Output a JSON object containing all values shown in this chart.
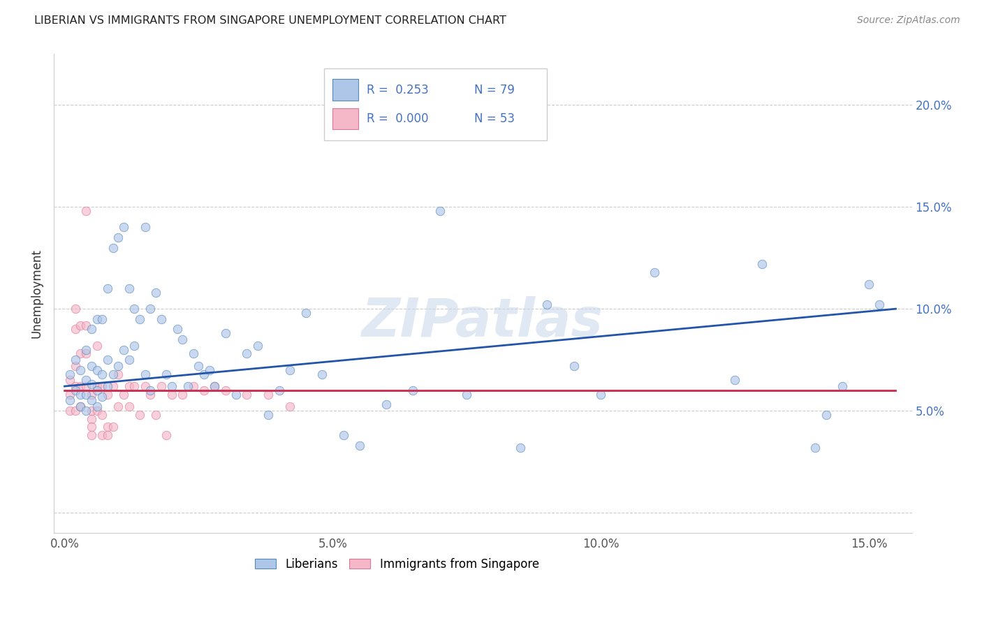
{
  "title": "LIBERIAN VS IMMIGRANTS FROM SINGAPORE UNEMPLOYMENT CORRELATION CHART",
  "source": "Source: ZipAtlas.com",
  "ylabel": "Unemployment",
  "xlim": [
    -0.002,
    0.158
  ],
  "ylim": [
    -0.01,
    0.225
  ],
  "ytick_positions": [
    0.0,
    0.05,
    0.1,
    0.15,
    0.2
  ],
  "ytick_labels": [
    "",
    "5.0%",
    "10.0%",
    "15.0%",
    "20.0%"
  ],
  "xtick_positions": [
    0.0,
    0.05,
    0.1,
    0.15
  ],
  "xtick_labels": [
    "0.0%",
    "5.0%",
    "10.0%",
    "15.0%"
  ],
  "legend_R_blue": "0.253",
  "legend_N_blue": "79",
  "legend_R_pink": "0.000",
  "legend_N_pink": "53",
  "blue_color": "#aec6e8",
  "pink_color": "#f4b8c8",
  "blue_edge": "#5588bb",
  "pink_edge": "#dd7799",
  "trend_blue": "#2255aa",
  "trend_pink": "#cc3355",
  "watermark": "ZIPatlas",
  "blue_x": [
    0.001,
    0.001,
    0.002,
    0.002,
    0.003,
    0.003,
    0.003,
    0.004,
    0.004,
    0.004,
    0.004,
    0.005,
    0.005,
    0.005,
    0.005,
    0.006,
    0.006,
    0.006,
    0.006,
    0.007,
    0.007,
    0.007,
    0.008,
    0.008,
    0.008,
    0.009,
    0.009,
    0.01,
    0.01,
    0.011,
    0.011,
    0.012,
    0.012,
    0.013,
    0.013,
    0.014,
    0.015,
    0.015,
    0.016,
    0.016,
    0.017,
    0.018,
    0.019,
    0.02,
    0.021,
    0.022,
    0.023,
    0.024,
    0.025,
    0.026,
    0.027,
    0.028,
    0.03,
    0.032,
    0.034,
    0.036,
    0.038,
    0.04,
    0.042,
    0.045,
    0.048,
    0.052,
    0.055,
    0.06,
    0.065,
    0.07,
    0.075,
    0.085,
    0.09,
    0.095,
    0.1,
    0.11,
    0.125,
    0.13,
    0.14,
    0.142,
    0.145,
    0.15,
    0.152
  ],
  "blue_y": [
    0.068,
    0.055,
    0.075,
    0.06,
    0.07,
    0.058,
    0.052,
    0.08,
    0.065,
    0.058,
    0.05,
    0.09,
    0.072,
    0.063,
    0.055,
    0.095,
    0.07,
    0.06,
    0.052,
    0.095,
    0.068,
    0.057,
    0.11,
    0.075,
    0.062,
    0.13,
    0.068,
    0.135,
    0.072,
    0.14,
    0.08,
    0.11,
    0.075,
    0.1,
    0.082,
    0.095,
    0.14,
    0.068,
    0.1,
    0.06,
    0.108,
    0.095,
    0.068,
    0.062,
    0.09,
    0.085,
    0.062,
    0.078,
    0.072,
    0.068,
    0.07,
    0.062,
    0.088,
    0.058,
    0.078,
    0.082,
    0.048,
    0.06,
    0.07,
    0.098,
    0.068,
    0.038,
    0.033,
    0.053,
    0.06,
    0.148,
    0.058,
    0.032,
    0.102,
    0.072,
    0.058,
    0.118,
    0.065,
    0.122,
    0.032,
    0.048,
    0.062,
    0.112,
    0.102
  ],
  "pink_x": [
    0.001,
    0.001,
    0.001,
    0.002,
    0.002,
    0.002,
    0.002,
    0.002,
    0.003,
    0.003,
    0.003,
    0.003,
    0.004,
    0.004,
    0.004,
    0.004,
    0.005,
    0.005,
    0.005,
    0.005,
    0.005,
    0.006,
    0.006,
    0.006,
    0.007,
    0.007,
    0.007,
    0.008,
    0.008,
    0.008,
    0.009,
    0.009,
    0.01,
    0.01,
    0.011,
    0.012,
    0.012,
    0.013,
    0.014,
    0.015,
    0.016,
    0.017,
    0.018,
    0.019,
    0.02,
    0.022,
    0.024,
    0.026,
    0.028,
    0.03,
    0.034,
    0.038,
    0.042
  ],
  "pink_y": [
    0.065,
    0.058,
    0.05,
    0.1,
    0.09,
    0.072,
    0.062,
    0.05,
    0.092,
    0.078,
    0.062,
    0.052,
    0.148,
    0.092,
    0.078,
    0.062,
    0.058,
    0.05,
    0.046,
    0.042,
    0.038,
    0.082,
    0.062,
    0.05,
    0.062,
    0.048,
    0.038,
    0.058,
    0.042,
    0.038,
    0.062,
    0.042,
    0.068,
    0.052,
    0.058,
    0.062,
    0.052,
    0.062,
    0.048,
    0.062,
    0.058,
    0.048,
    0.062,
    0.038,
    0.058,
    0.058,
    0.062,
    0.06,
    0.062,
    0.06,
    0.058,
    0.058,
    0.052
  ],
  "marker_size": 80,
  "alpha": 0.65,
  "trend_blue_x0": 0.0,
  "trend_blue_y0": 0.062,
  "trend_blue_x1": 0.155,
  "trend_blue_y1": 0.1,
  "trend_pink_x0": 0.0,
  "trend_pink_y0": 0.06,
  "trend_pink_x1": 0.155,
  "trend_pink_y1": 0.06
}
